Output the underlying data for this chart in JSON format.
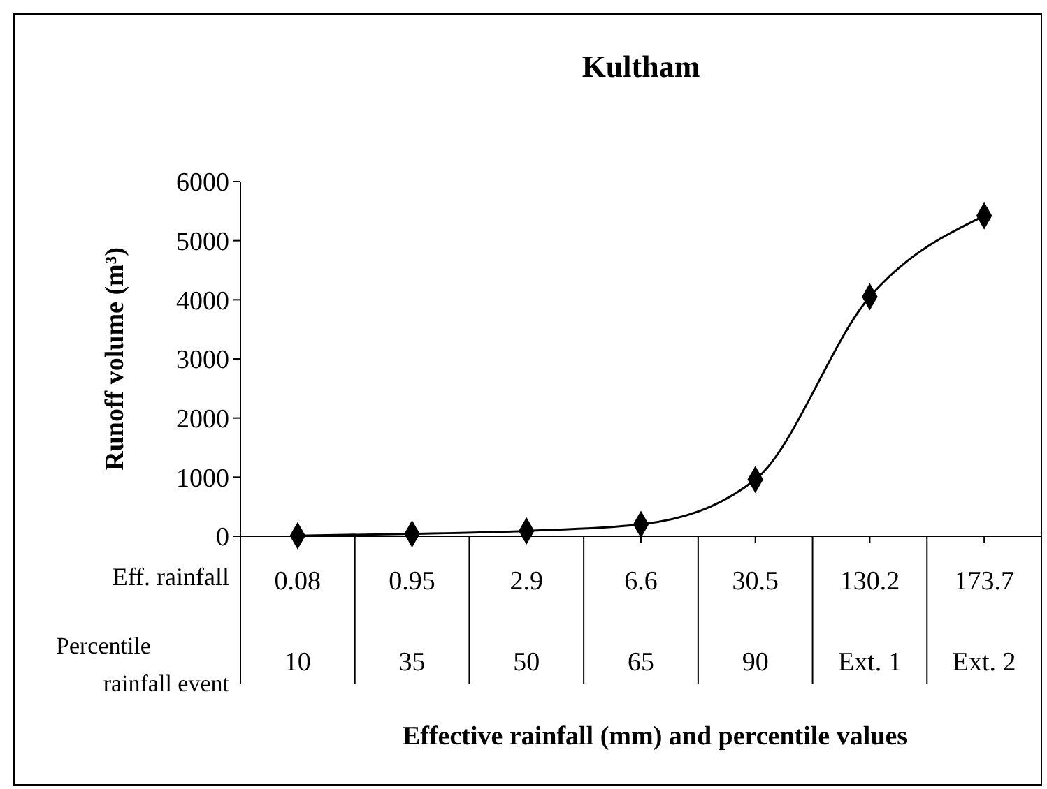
{
  "chart_data": {
    "type": "line",
    "title": "Kultham",
    "xlabel": "Effective rainfall (mm) and percentile values",
    "ylabel": "Runoff volume (m³)",
    "categories": [
      "0.08",
      "0.95",
      "2.9",
      "6.6",
      "30.5",
      "130.2",
      "173.7"
    ],
    "series": [
      {
        "color": "#000000",
        "values": [
          10,
          40,
          90,
          200,
          960,
          4050,
          5420
        ]
      }
    ],
    "ylim": [
      0,
      6000
    ],
    "yticks": [
      0,
      1000,
      2000,
      3000,
      4000,
      5000,
      6000
    ],
    "grid": false,
    "marker": "diamond",
    "line_style": "solid",
    "annotations": [
      "Eff. rainfall",
      "Percentile rainfall event",
      "10",
      "35",
      "50",
      "65",
      "90",
      "Ext. 1",
      "Ext. 2"
    ]
  }
}
